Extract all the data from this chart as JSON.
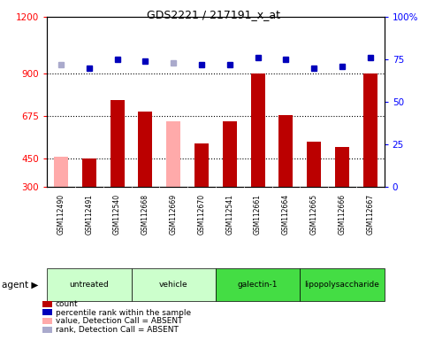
{
  "title": "GDS2221 / 217191_x_at",
  "samples": [
    "GSM112490",
    "GSM112491",
    "GSM112540",
    "GSM112668",
    "GSM112669",
    "GSM112670",
    "GSM112541",
    "GSM112661",
    "GSM112664",
    "GSM112665",
    "GSM112666",
    "GSM112667"
  ],
  "bar_values": [
    null,
    450,
    760,
    700,
    null,
    530,
    650,
    900,
    680,
    540,
    510,
    900
  ],
  "bar_absent": [
    460,
    null,
    null,
    null,
    650,
    null,
    null,
    null,
    null,
    null,
    null,
    null
  ],
  "bar_color_present": "#bb0000",
  "bar_color_absent": "#ffaaaa",
  "dot_values": [
    72,
    70,
    75,
    74,
    73,
    72,
    72,
    76,
    75,
    70,
    71,
    76
  ],
  "dot_absent": [
    true,
    false,
    false,
    false,
    true,
    false,
    false,
    false,
    false,
    false,
    false,
    false
  ],
  "dot_color_present": "#0000bb",
  "dot_color_absent": "#aaaacc",
  "groups": [
    {
      "label": "untreated",
      "start": 0,
      "end": 3,
      "color": "#ccffcc"
    },
    {
      "label": "vehicle",
      "start": 3,
      "end": 6,
      "color": "#ccffcc"
    },
    {
      "label": "galectin-1",
      "start": 6,
      "end": 9,
      "color": "#44dd44"
    },
    {
      "label": "lipopolysaccharide",
      "start": 9,
      "end": 12,
      "color": "#44dd44"
    }
  ],
  "ylim_left": [
    300,
    1200
  ],
  "ylim_right": [
    0,
    100
  ],
  "yticks_left": [
    300,
    450,
    675,
    900,
    1200
  ],
  "yticks_right": [
    0,
    25,
    50,
    75,
    100
  ],
  "hlines": [
    450,
    675,
    900
  ],
  "legend_items": [
    {
      "color": "#bb0000",
      "label": "count",
      "type": "bar"
    },
    {
      "color": "#0000bb",
      "label": "percentile rank within the sample",
      "type": "dot"
    },
    {
      "color": "#ffaaaa",
      "label": "value, Detection Call = ABSENT",
      "type": "bar"
    },
    {
      "color": "#aaaacc",
      "label": "rank, Detection Call = ABSENT",
      "type": "dot"
    }
  ]
}
